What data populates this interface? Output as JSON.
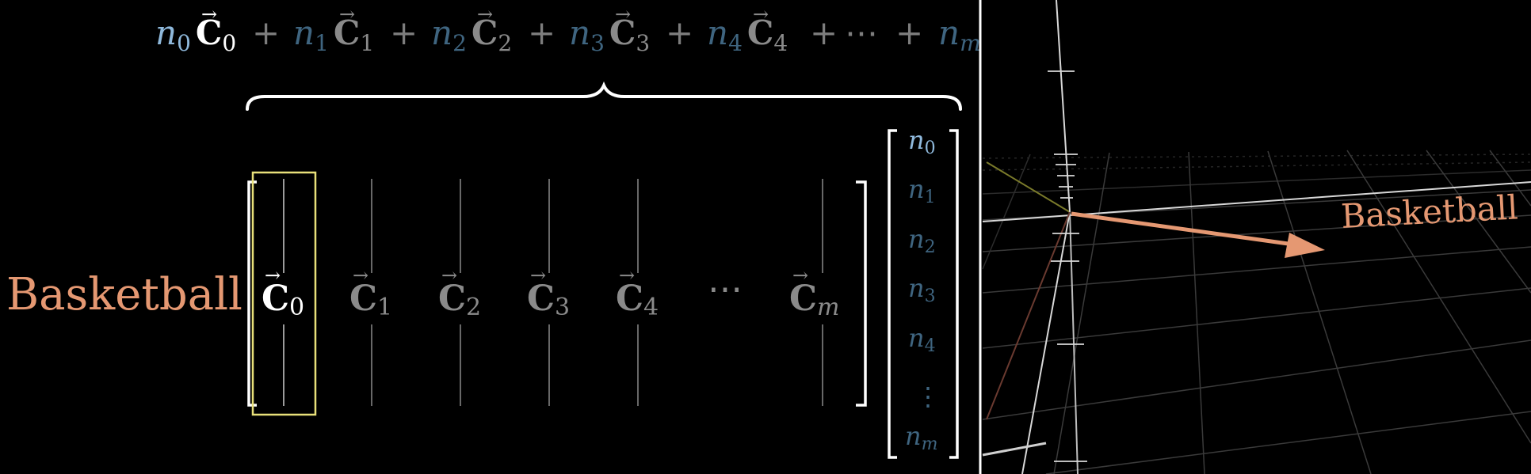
{
  "sum_expression": {
    "terms": [
      {
        "coef": "n",
        "sub": "0",
        "vec": "C",
        "vsub": "0",
        "coef_color": "#8fb9dc",
        "vec_color": "#ffffff"
      },
      {
        "coef": "n",
        "sub": "1",
        "vec": "C",
        "vsub": "1",
        "coef_color": "#3f6580",
        "vec_color": "#8a8a8a"
      },
      {
        "coef": "n",
        "sub": "2",
        "vec": "C",
        "vsub": "2",
        "coef_color": "#3f6580",
        "vec_color": "#8a8a8a"
      },
      {
        "coef": "n",
        "sub": "3",
        "vec": "C",
        "vsub": "3",
        "coef_color": "#3f6580",
        "vec_color": "#8a8a8a"
      },
      {
        "coef": "n",
        "sub": "4",
        "vec": "C",
        "vsub": "4",
        "coef_color": "#3f6580",
        "vec_color": "#8a8a8a"
      }
    ],
    "plus": "+",
    "ellipsis": "⋯",
    "tail_coef": "n",
    "tail_sub": "m"
  },
  "matrix": {
    "row_label": "Basketball",
    "columns": [
      {
        "vec": "C",
        "sub": "0",
        "highlighted": true
      },
      {
        "vec": "C",
        "sub": "1",
        "highlighted": false
      },
      {
        "vec": "C",
        "sub": "2",
        "highlighted": false
      },
      {
        "vec": "C",
        "sub": "3",
        "highlighted": false
      },
      {
        "vec": "C",
        "sub": "4",
        "highlighted": false
      },
      {
        "vec": "⋯",
        "sub": "",
        "highlighted": false
      },
      {
        "vec": "C",
        "sub": "m",
        "highlighted": false
      }
    ]
  },
  "coef_vector": {
    "entries": [
      {
        "n": "n",
        "sub": "0"
      },
      {
        "n": "n",
        "sub": "1"
      },
      {
        "n": "n",
        "sub": "2"
      },
      {
        "n": "n",
        "sub": "3"
      },
      {
        "n": "n",
        "sub": "4"
      },
      {
        "n": "⋮",
        "sub": ""
      },
      {
        "n": "n",
        "sub": "m"
      }
    ]
  },
  "scene3d": {
    "vector_label": "Basketball"
  },
  "colors": {
    "highlight_box": "#e8e07a",
    "basketball": "#e59872",
    "coef_active": "#8fb9dc",
    "coef_dim": "#3f6580",
    "vec_dim": "#8a8a8a",
    "vec_active": "#ffffff"
  }
}
